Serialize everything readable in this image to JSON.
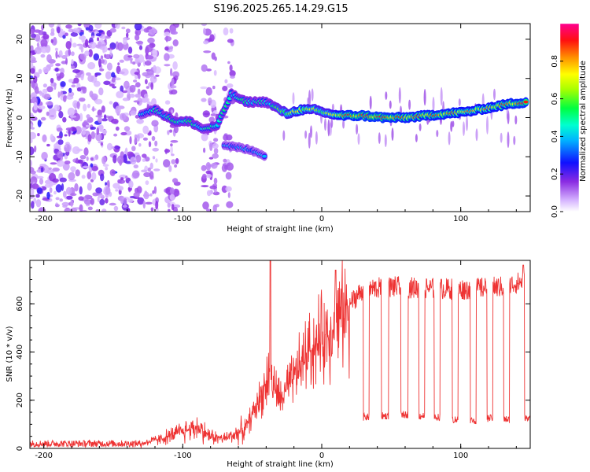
{
  "title": "S196.2025.265.14.29.G15",
  "chart_data": [
    {
      "type": "heatmap",
      "name": "spectrogram",
      "xlabel": "Height of straight line (km)",
      "ylabel": "Frequency (Hz)",
      "xlim": [
        -210,
        150
      ],
      "ylim": [
        -24,
        24
      ],
      "xticks": [
        -200,
        -100,
        0,
        100
      ],
      "yticks": [
        -20,
        -10,
        0,
        10,
        20
      ],
      "colorbar": {
        "label": "Normalized spectral amplitude",
        "range": [
          0,
          1
        ],
        "ticks": [
          "0.0",
          "0.2",
          "0.4",
          "0.6",
          "0.8"
        ]
      },
      "ridge": [
        {
          "x": -130,
          "y": 1,
          "a": 0.45
        },
        {
          "x": -120,
          "y": 2,
          "a": 0.5
        },
        {
          "x": -105,
          "y": -1,
          "a": 0.55
        },
        {
          "x": -95,
          "y": -1,
          "a": 0.55
        },
        {
          "x": -85,
          "y": -3,
          "a": 0.5
        },
        {
          "x": -75,
          "y": -2,
          "a": 0.55
        },
        {
          "x": -65,
          "y": 6,
          "a": 0.5
        },
        {
          "x": -55,
          "y": 4,
          "a": 0.55
        },
        {
          "x": -40,
          "y": 4,
          "a": 0.5
        },
        {
          "x": -25,
          "y": 1,
          "a": 0.7
        },
        {
          "x": -15,
          "y": 2,
          "a": 0.8
        },
        {
          "x": -5,
          "y": 2,
          "a": 0.7
        },
        {
          "x": 5,
          "y": 1,
          "a": 0.7
        },
        {
          "x": 15,
          "y": 0.5,
          "a": 0.9
        },
        {
          "x": 30,
          "y": 0.5,
          "a": 0.95
        },
        {
          "x": 45,
          "y": 0,
          "a": 0.95
        },
        {
          "x": 60,
          "y": 0,
          "a": 0.9
        },
        {
          "x": 75,
          "y": 0.5,
          "a": 0.9
        },
        {
          "x": 90,
          "y": 1,
          "a": 0.9
        },
        {
          "x": 105,
          "y": 1.5,
          "a": 0.85
        },
        {
          "x": 120,
          "y": 2.5,
          "a": 0.85
        },
        {
          "x": 135,
          "y": 3.5,
          "a": 0.9
        },
        {
          "x": 148,
          "y": 4,
          "a": 0.95
        }
      ],
      "lower_branch": [
        {
          "x": -70,
          "y": -7
        },
        {
          "x": -55,
          "y": -8
        },
        {
          "x": -45,
          "y": -9
        },
        {
          "x": -40,
          "y": -10
        }
      ]
    },
    {
      "type": "line",
      "name": "snr",
      "xlabel": "Height of straight line (km)",
      "ylabel": "SNR (10 * v/v)",
      "xlim": [
        -210,
        150
      ],
      "ylim": [
        0,
        780
      ],
      "xticks": [
        -200,
        -100,
        0,
        100
      ],
      "yticks": [
        0,
        200,
        400,
        600
      ],
      "color": "#ee3333",
      "trend": [
        {
          "x": -210,
          "y": 20
        },
        {
          "x": -130,
          "y": 20
        },
        {
          "x": -115,
          "y": 40
        },
        {
          "x": -100,
          "y": 70
        },
        {
          "x": -90,
          "y": 90
        },
        {
          "x": -80,
          "y": 50
        },
        {
          "x": -70,
          "y": 40
        },
        {
          "x": -55,
          "y": 80
        },
        {
          "x": -45,
          "y": 200
        },
        {
          "x": -38,
          "y": 300
        },
        {
          "x": -30,
          "y": 200
        },
        {
          "x": -22,
          "y": 270
        },
        {
          "x": -10,
          "y": 400
        },
        {
          "x": 0,
          "y": 450
        },
        {
          "x": 10,
          "y": 520
        },
        {
          "x": 20,
          "y": 600
        },
        {
          "x": 30,
          "y": 660
        },
        {
          "x": 50,
          "y": 670
        },
        {
          "x": 100,
          "y": 660
        },
        {
          "x": 130,
          "y": 670
        },
        {
          "x": 150,
          "y": 700
        }
      ],
      "spikes": [
        {
          "x": -37,
          "y": 780
        },
        {
          "x": 10,
          "y": 740
        },
        {
          "x": 145,
          "y": 760
        }
      ],
      "dropouts": [
        {
          "x0": 30,
          "x1": 34,
          "y": 130
        },
        {
          "x0": 43,
          "x1": 48,
          "y": 135
        },
        {
          "x0": 57,
          "x1": 62,
          "y": 140
        },
        {
          "x0": 70,
          "x1": 74,
          "y": 135
        },
        {
          "x0": 81,
          "x1": 85,
          "y": 130
        },
        {
          "x0": 94,
          "x1": 98,
          "y": 120
        },
        {
          "x0": 107,
          "x1": 111,
          "y": 115
        },
        {
          "x0": 119,
          "x1": 123,
          "y": 125
        },
        {
          "x0": 131,
          "x1": 135,
          "y": 120
        },
        {
          "x0": 146,
          "x1": 150,
          "y": 130
        }
      ]
    }
  ]
}
